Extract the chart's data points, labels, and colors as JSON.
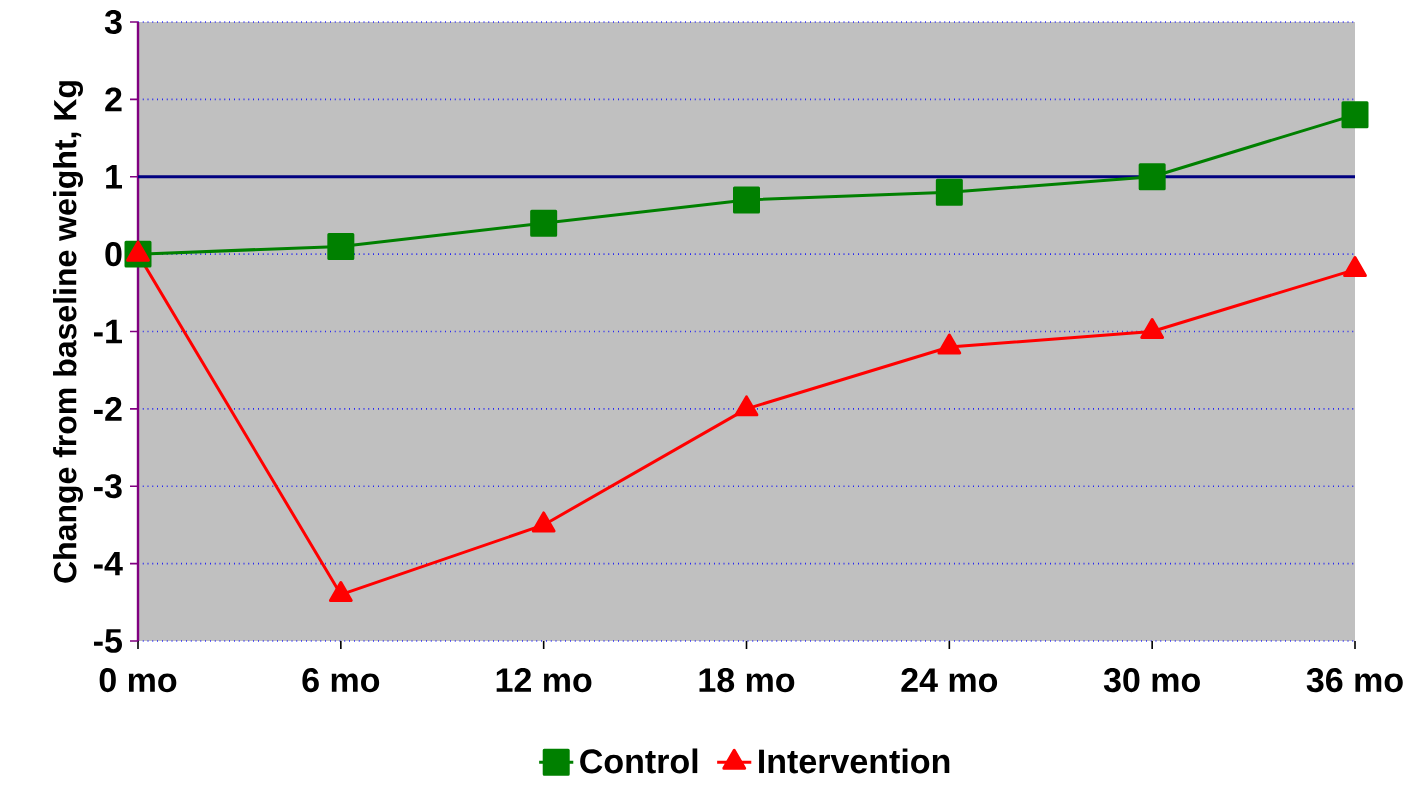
{
  "chart_data": {
    "type": "line",
    "ylabel": "Change from baseline weight, Kg",
    "categories": [
      "0 mo",
      "6 mo",
      "12 mo",
      "18 mo",
      "24 mo",
      "30 mo",
      "36 mo"
    ],
    "series": [
      {
        "name": "Control",
        "color": "#008000",
        "marker": "square",
        "values": [
          0,
          0.1,
          0.4,
          0.7,
          0.8,
          1.0,
          1.8
        ]
      },
      {
        "name": "Intervention",
        "color": "#ff0000",
        "marker": "triangle",
        "values": [
          0,
          -4.4,
          -3.5,
          -2.0,
          -1.2,
          -1.0,
          -0.2
        ]
      }
    ],
    "ylim": [
      -5,
      3
    ],
    "yticks": [
      -5,
      -4,
      -3,
      -2,
      -1,
      0,
      1,
      2,
      3
    ],
    "ref_lines": [
      {
        "axis": "y",
        "value": 1,
        "color": "#000080"
      }
    ],
    "grid": "y",
    "legend": "bottom",
    "line_style": "solid"
  }
}
